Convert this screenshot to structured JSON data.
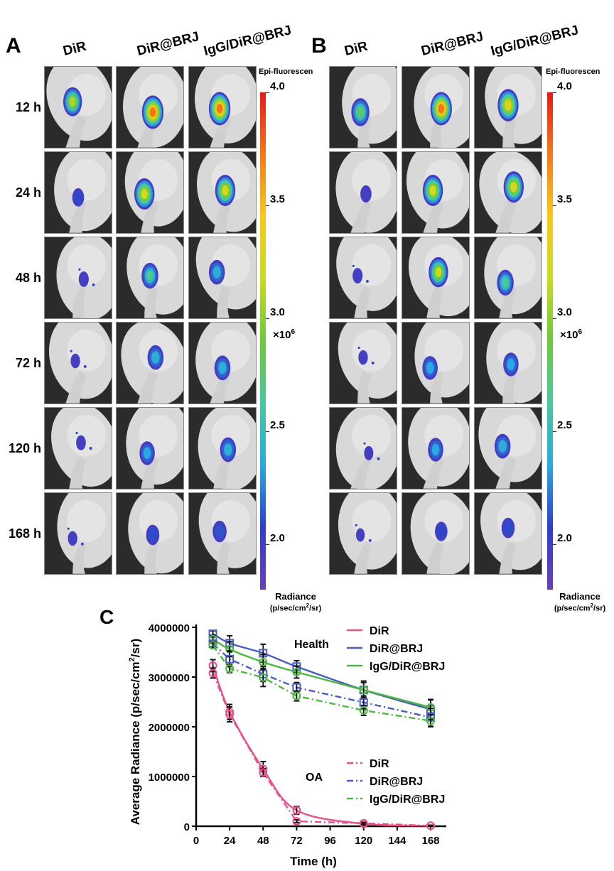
{
  "figure": {
    "panel_a": {
      "letter": "A",
      "columns": [
        "DiR",
        "DiR@BRJ",
        "IgG/DiR@BRJ"
      ],
      "rows": [
        "12 h",
        "24 h",
        "48 h",
        "72 h",
        "120 h",
        "168 h"
      ],
      "intensity": [
        [
          0.75,
          0.95,
          0.95
        ],
        [
          0.25,
          0.85,
          0.85
        ],
        [
          0.12,
          0.6,
          0.55
        ],
        [
          0.08,
          0.55,
          0.55
        ],
        [
          0.1,
          0.5,
          0.55
        ],
        [
          0.08,
          0.35,
          0.4
        ]
      ]
    },
    "panel_b": {
      "letter": "B",
      "columns": [
        "DiR",
        "DiR@BRJ",
        "IgG/DiR@BRJ"
      ],
      "rows": [
        "12 h",
        "24 h",
        "48 h",
        "72 h",
        "120 h",
        "168 h"
      ],
      "intensity": [
        [
          0.7,
          0.95,
          0.9
        ],
        [
          0.2,
          0.85,
          0.85
        ],
        [
          0.12,
          0.8,
          0.6
        ],
        [
          0.08,
          0.5,
          0.5
        ],
        [
          0.06,
          0.5,
          0.55
        ],
        [
          0.02,
          0.3,
          0.35
        ]
      ]
    },
    "colorbar": {
      "title": "Epi-fluorescen",
      "ticks": [
        "4.0",
        "3.5",
        "3.0",
        "2.5",
        "2.0"
      ],
      "multiplier": "×10",
      "multiplier_exp": "6",
      "unit_line1": "Radiance",
      "unit_line2_pre": "(p/sec/cm",
      "unit_line2_sup": "2",
      "unit_line2_post": "/sr)",
      "range": [
        1.8,
        4.0
      ],
      "colors": [
        "#6a3fb8",
        "#2e3fc8",
        "#2aa8e0",
        "#48c8a0",
        "#6cc83c",
        "#c8dc20",
        "#f8c818",
        "#f47a18",
        "#e81818"
      ]
    },
    "panel_c": {
      "letter": "C"
    }
  },
  "chart_data": {
    "type": "line",
    "title": "",
    "xlabel": "Time (h)",
    "ylabel_pre": "Average Radiance (p/sec/cm",
    "ylabel_sup": "2",
    "ylabel_post": "/sr)",
    "xlim": [
      0,
      168
    ],
    "ylim": [
      0,
      4000000
    ],
    "xticks": [
      "0",
      "24",
      "48",
      "72",
      "96",
      "120",
      "144",
      "168"
    ],
    "xtick_values": [
      0,
      24,
      48,
      72,
      96,
      120,
      144,
      168
    ],
    "yticks": [
      "0",
      "1000000",
      "2000000",
      "3000000",
      "4000000"
    ],
    "ytick_values": [
      0,
      1000000,
      2000000,
      3000000,
      4000000
    ],
    "x": [
      12,
      24,
      48,
      72,
      120,
      168
    ],
    "legend_groups": [
      {
        "label": "Health",
        "style": "solid",
        "position": "top-right"
      },
      {
        "label": "OA",
        "style": "dashdot",
        "position": "middle-right"
      }
    ],
    "series": [
      {
        "name": "DiR",
        "group": "Health",
        "style": "solid",
        "color": "#e8508a",
        "marker": "circle",
        "values": [
          3230000,
          2300000,
          1150000,
          320000,
          50000,
          10000
        ],
        "errors": [
          120000,
          150000,
          150000,
          80000,
          20000,
          10000
        ]
      },
      {
        "name": "DiR@BRJ",
        "group": "Health",
        "style": "solid",
        "color": "#4a5cc0",
        "marker": "square",
        "values": [
          3870000,
          3680000,
          3480000,
          3210000,
          2740000,
          2350000
        ],
        "errors": [
          60000,
          150000,
          180000,
          120000,
          180000,
          200000
        ]
      },
      {
        "name": "IgG/DiR@BRJ",
        "group": "Health",
        "style": "solid",
        "color": "#4cb840",
        "marker": "circle",
        "values": [
          3760000,
          3560000,
          3300000,
          3100000,
          2740000,
          2390000
        ],
        "errors": [
          80000,
          150000,
          150000,
          120000,
          150000,
          150000
        ]
      },
      {
        "name": "DiR",
        "group": "OA",
        "style": "dashdot",
        "color": "#e8508a",
        "marker": "circle",
        "values": [
          3080000,
          2250000,
          1080000,
          100000,
          60000,
          10000
        ],
        "errors": [
          100000,
          150000,
          80000,
          30000,
          20000,
          10000
        ]
      },
      {
        "name": "DiR@BRJ",
        "group": "OA",
        "style": "dashdot",
        "color": "#4a5cc0",
        "marker": "square",
        "values": [
          3670000,
          3360000,
          3060000,
          2790000,
          2490000,
          2190000
        ],
        "errors": [
          60000,
          150000,
          150000,
          100000,
          130000,
          180000
        ]
      },
      {
        "name": "IgG/DiR@BRJ",
        "group": "OA",
        "style": "dashdot",
        "color": "#4cb840",
        "marker": "circle",
        "values": [
          3640000,
          3170000,
          2990000,
          2620000,
          2330000,
          2120000
        ],
        "errors": [
          60000,
          80000,
          180000,
          100000,
          100000,
          120000
        ]
      }
    ]
  }
}
